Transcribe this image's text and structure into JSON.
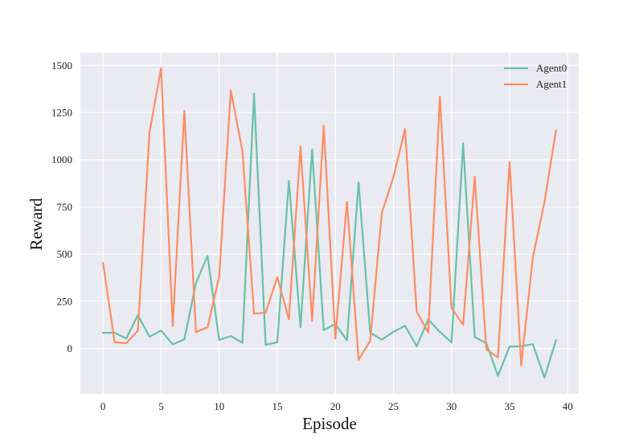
{
  "chart_data": {
    "type": "line",
    "title": "",
    "xlabel": "Episode",
    "ylabel": "Reward",
    "xlim": [
      -1.95,
      40.95
    ],
    "ylim": [
      -240,
      1565
    ],
    "x_ticks": [
      0,
      5,
      10,
      15,
      20,
      25,
      30,
      35,
      40
    ],
    "y_ticks": [
      0,
      250,
      500,
      750,
      1000,
      1250,
      1500
    ],
    "grid": true,
    "legend_position": "top-right",
    "background": "#eaeaf2",
    "x": [
      0,
      1,
      2,
      3,
      4,
      5,
      6,
      7,
      8,
      9,
      10,
      11,
      12,
      13,
      14,
      15,
      16,
      17,
      18,
      19,
      20,
      21,
      22,
      23,
      24,
      25,
      26,
      27,
      28,
      29,
      30,
      31,
      32,
      33,
      34,
      35,
      36,
      37,
      38,
      39
    ],
    "series": [
      {
        "name": "Agent0",
        "color": "#66c2a5",
        "values": [
          83,
          83,
          53,
          177,
          62,
          95,
          22,
          48,
          346,
          491,
          45,
          66,
          30,
          1350,
          20,
          33,
          888,
          113,
          1055,
          97,
          130,
          43,
          880,
          83,
          47,
          88,
          120,
          12,
          153,
          88,
          32,
          1087,
          60,
          28,
          -145,
          10,
          12,
          23,
          -155,
          45
        ]
      },
      {
        "name": "Agent1",
        "color": "#fc8d62",
        "values": [
          453,
          33,
          28,
          94,
          1145,
          1485,
          119,
          1258,
          87,
          113,
          380,
          1368,
          1045,
          185,
          190,
          378,
          155,
          1068,
          145,
          1180,
          52,
          777,
          -60,
          40,
          718,
          908,
          1163,
          195,
          85,
          1335,
          215,
          125,
          910,
          -5,
          -48,
          988,
          -90,
          481,
          775,
          1155
        ]
      }
    ]
  }
}
